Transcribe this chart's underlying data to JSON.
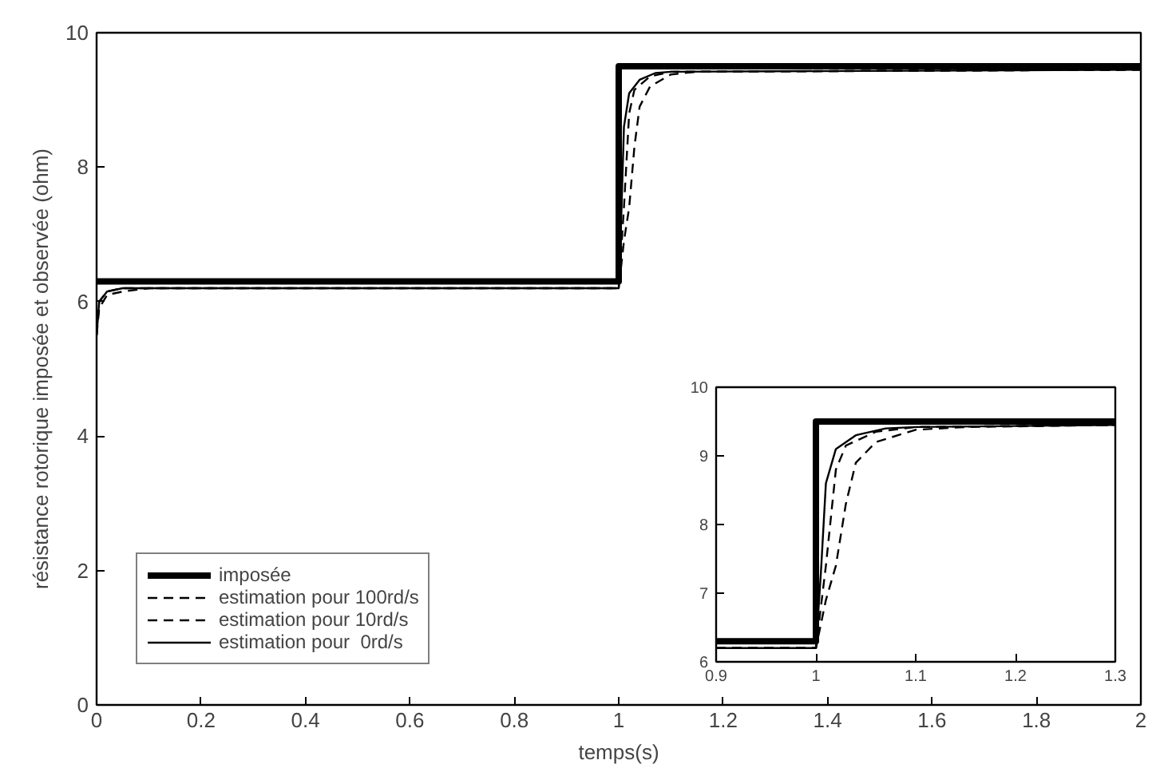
{
  "chart_data": [
    {
      "type": "line",
      "xlabel": "temps(s)",
      "ylabel": "résistance rotorique imposée et observée (ohm)",
      "xlim": [
        0,
        2
      ],
      "ylim": [
        0,
        10
      ],
      "xticks": [
        0,
        0.2,
        0.4,
        0.6,
        0.8,
        1,
        1.2,
        1.4,
        1.6,
        1.8,
        2
      ],
      "yticks": [
        0,
        2,
        4,
        6,
        8,
        10
      ],
      "grid": false,
      "legend": "bottom left",
      "series": [
        {
          "name": "imposée",
          "color": "#000000",
          "line_style": "solid",
          "x": [
            0,
            1,
            1,
            2
          ],
          "values": [
            6.3,
            6.3,
            9.5,
            9.5
          ]
        },
        {
          "name": "estimation pour 100rd/s",
          "color": "#000000",
          "line_style": "dashed",
          "x": [
            0,
            0.005,
            0.02,
            0.05,
            0.1,
            1.0,
            1.01,
            1.02,
            1.03,
            1.04,
            1.06,
            1.1,
            1.15,
            2
          ],
          "values": [
            5.5,
            5.9,
            6.1,
            6.15,
            6.2,
            6.2,
            6.9,
            7.4,
            8.3,
            8.9,
            9.2,
            9.38,
            9.42,
            9.45
          ]
        },
        {
          "name": "estimation pour 10rd/s",
          "color": "#000000",
          "line_style": "dashed",
          "x": [
            0,
            0.005,
            0.02,
            0.05,
            0.1,
            1.0,
            1.01,
            1.02,
            1.03,
            1.06,
            1.1,
            2
          ],
          "values": [
            5.5,
            6.0,
            6.15,
            6.2,
            6.2,
            6.2,
            7.4,
            8.8,
            9.15,
            9.35,
            9.42,
            9.45
          ]
        },
        {
          "name": "estimation pour  0rd/s",
          "color": "#000000",
          "line_style": "solid",
          "x": [
            0,
            0.005,
            0.02,
            0.05,
            0.1,
            1.0,
            1.005,
            1.01,
            1.02,
            1.04,
            1.07,
            1.1,
            2
          ],
          "values": [
            5.5,
            6.0,
            6.15,
            6.2,
            6.2,
            6.2,
            7.3,
            8.6,
            9.1,
            9.3,
            9.4,
            9.42,
            9.45
          ]
        }
      ]
    },
    {
      "type": "line",
      "xlim": [
        0.9,
        1.3
      ],
      "ylim": [
        6,
        10
      ],
      "xticks": [
        {
          "value": 0.9,
          "label": "0.9"
        },
        1,
        1.1,
        1.2,
        1.3
      ],
      "yticks": [
        6,
        7,
        8,
        9,
        10
      ],
      "grid": false,
      "series": [
        {
          "color": "#000000",
          "line_style": "solid",
          "x": [
            0.9,
            1,
            1,
            1.3
          ],
          "values": [
            6.3,
            6.3,
            9.5,
            9.5
          ]
        },
        {
          "color": "#000000",
          "line_style": "dashed",
          "x": [
            0.9,
            1.0,
            1.01,
            1.02,
            1.03,
            1.04,
            1.06,
            1.1,
            1.15,
            1.3
          ],
          "values": [
            6.2,
            6.2,
            6.9,
            7.4,
            8.3,
            8.9,
            9.2,
            9.38,
            9.42,
            9.45
          ]
        },
        {
          "color": "#000000",
          "line_style": "dashed",
          "x": [
            0.9,
            1.0,
            1.01,
            1.02,
            1.03,
            1.06,
            1.1,
            1.3
          ],
          "values": [
            6.2,
            6.2,
            7.4,
            8.8,
            9.15,
            9.35,
            9.42,
            9.45
          ]
        },
        {
          "color": "#000000",
          "line_style": "solid",
          "x": [
            0.9,
            1.0,
            1.005,
            1.01,
            1.02,
            1.04,
            1.07,
            1.1,
            1.3
          ],
          "values": [
            6.2,
            6.2,
            7.3,
            8.6,
            9.1,
            9.3,
            9.4,
            9.42,
            9.45
          ]
        }
      ]
    }
  ]
}
